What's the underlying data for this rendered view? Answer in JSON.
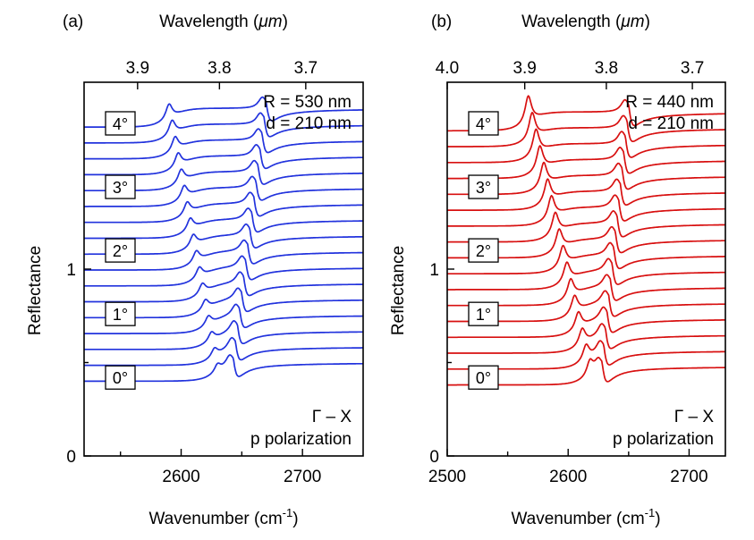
{
  "chart_data": [
    {
      "type": "line",
      "panel_label": "(a)",
      "color": "#2233dd",
      "top_axis_label": "Wavelength (",
      "top_axis_unit": "μm",
      "top_axis_close": ")",
      "bottom_axis_label_main": "Wavenumber (cm",
      "bottom_axis_label_sup": "-1",
      "bottom_axis_label_close": ")",
      "ylabel": "Reflectance",
      "params": [
        "R = 530 nm",
        "d = 210 nm"
      ],
      "annotation": [
        "Γ – X",
        "p polarization"
      ],
      "xlim": [
        2520,
        2750
      ],
      "ylim": [
        0,
        2.0
      ],
      "bottom_ticks": [
        2600,
        2700
      ],
      "bottom_minor_ticks": [
        2550,
        2650
      ],
      "bottom_tick_labels": [
        "2600",
        "2700"
      ],
      "top_ticks_um": [
        3.9,
        3.8,
        3.7
      ],
      "top_tick_labels": [
        "3.9",
        "3.8",
        "3.7"
      ],
      "y_ticks": [
        0,
        1
      ],
      "y_tick_labels": [
        "0",
        "1"
      ],
      "y_minor_ticks": [
        0.5
      ],
      "angle_labels": [
        "0°",
        "1°",
        "2°",
        "3°",
        "4°"
      ],
      "angle_label_y": [
        0.42,
        0.76,
        1.1,
        1.44,
        1.78
      ],
      "series_angles_deg": [
        0,
        0.25,
        0.5,
        0.75,
        1.0,
        1.25,
        1.5,
        1.75,
        2.0,
        2.25,
        2.5,
        2.75,
        3.0,
        3.25,
        3.5,
        3.75,
        4.0
      ],
      "baseline_start": 0.45,
      "baseline_step": 0.085,
      "resonance1_wavenumber_at_0deg": 2632,
      "resonance1_wavenumber_at_4deg": 2592,
      "resonance2_wavenumber_at_0deg": 2643,
      "resonance2_wavenumber_at_4deg": 2670,
      "resonance1_amplitude": 0.09,
      "resonance2_amplitude": 0.11
    },
    {
      "type": "line",
      "panel_label": "(b)",
      "color": "#d81010",
      "top_axis_label": "Wavelength (",
      "top_axis_unit": "μm",
      "top_axis_close": ")",
      "bottom_axis_label_main": "Wavenumber (cm",
      "bottom_axis_label_sup": "-1",
      "bottom_axis_label_close": ")",
      "ylabel": "Reflectance",
      "params": [
        "R = 440 nm",
        "d = 210 nm"
      ],
      "annotation": [
        "Γ – X",
        "p polarization"
      ],
      "xlim": [
        2500,
        2730
      ],
      "ylim": [
        0,
        2.0
      ],
      "bottom_ticks": [
        2500,
        2600,
        2700
      ],
      "bottom_minor_ticks": [
        2550,
        2650
      ],
      "bottom_tick_labels": [
        "2500",
        "2600",
        "2700"
      ],
      "top_ticks_um": [
        4.0,
        3.9,
        3.8,
        3.7
      ],
      "top_tick_labels": [
        "4.0",
        "3.9",
        "3.8",
        "3.7"
      ],
      "y_ticks": [
        0,
        1
      ],
      "y_tick_labels": [
        "0",
        "1"
      ],
      "y_minor_ticks": [
        0.5
      ],
      "angle_labels": [
        "0°",
        "1°",
        "2°",
        "3°",
        "4°"
      ],
      "angle_label_y": [
        0.42,
        0.76,
        1.1,
        1.44,
        1.78
      ],
      "series_angles_deg": [
        0,
        0.25,
        0.5,
        0.75,
        1.0,
        1.25,
        1.5,
        1.75,
        2.0,
        2.25,
        2.5,
        2.75,
        3.0,
        3.25,
        3.5,
        3.75,
        4.0
      ],
      "baseline_start": 0.43,
      "baseline_step": 0.085,
      "resonance1_wavenumber_at_0deg": 2620,
      "resonance1_wavenumber_at_4deg": 2569,
      "resonance2_wavenumber_at_0deg": 2628,
      "resonance2_wavenumber_at_4deg": 2650,
      "resonance1_amplitude": 0.16,
      "resonance2_amplitude": 0.12
    }
  ]
}
